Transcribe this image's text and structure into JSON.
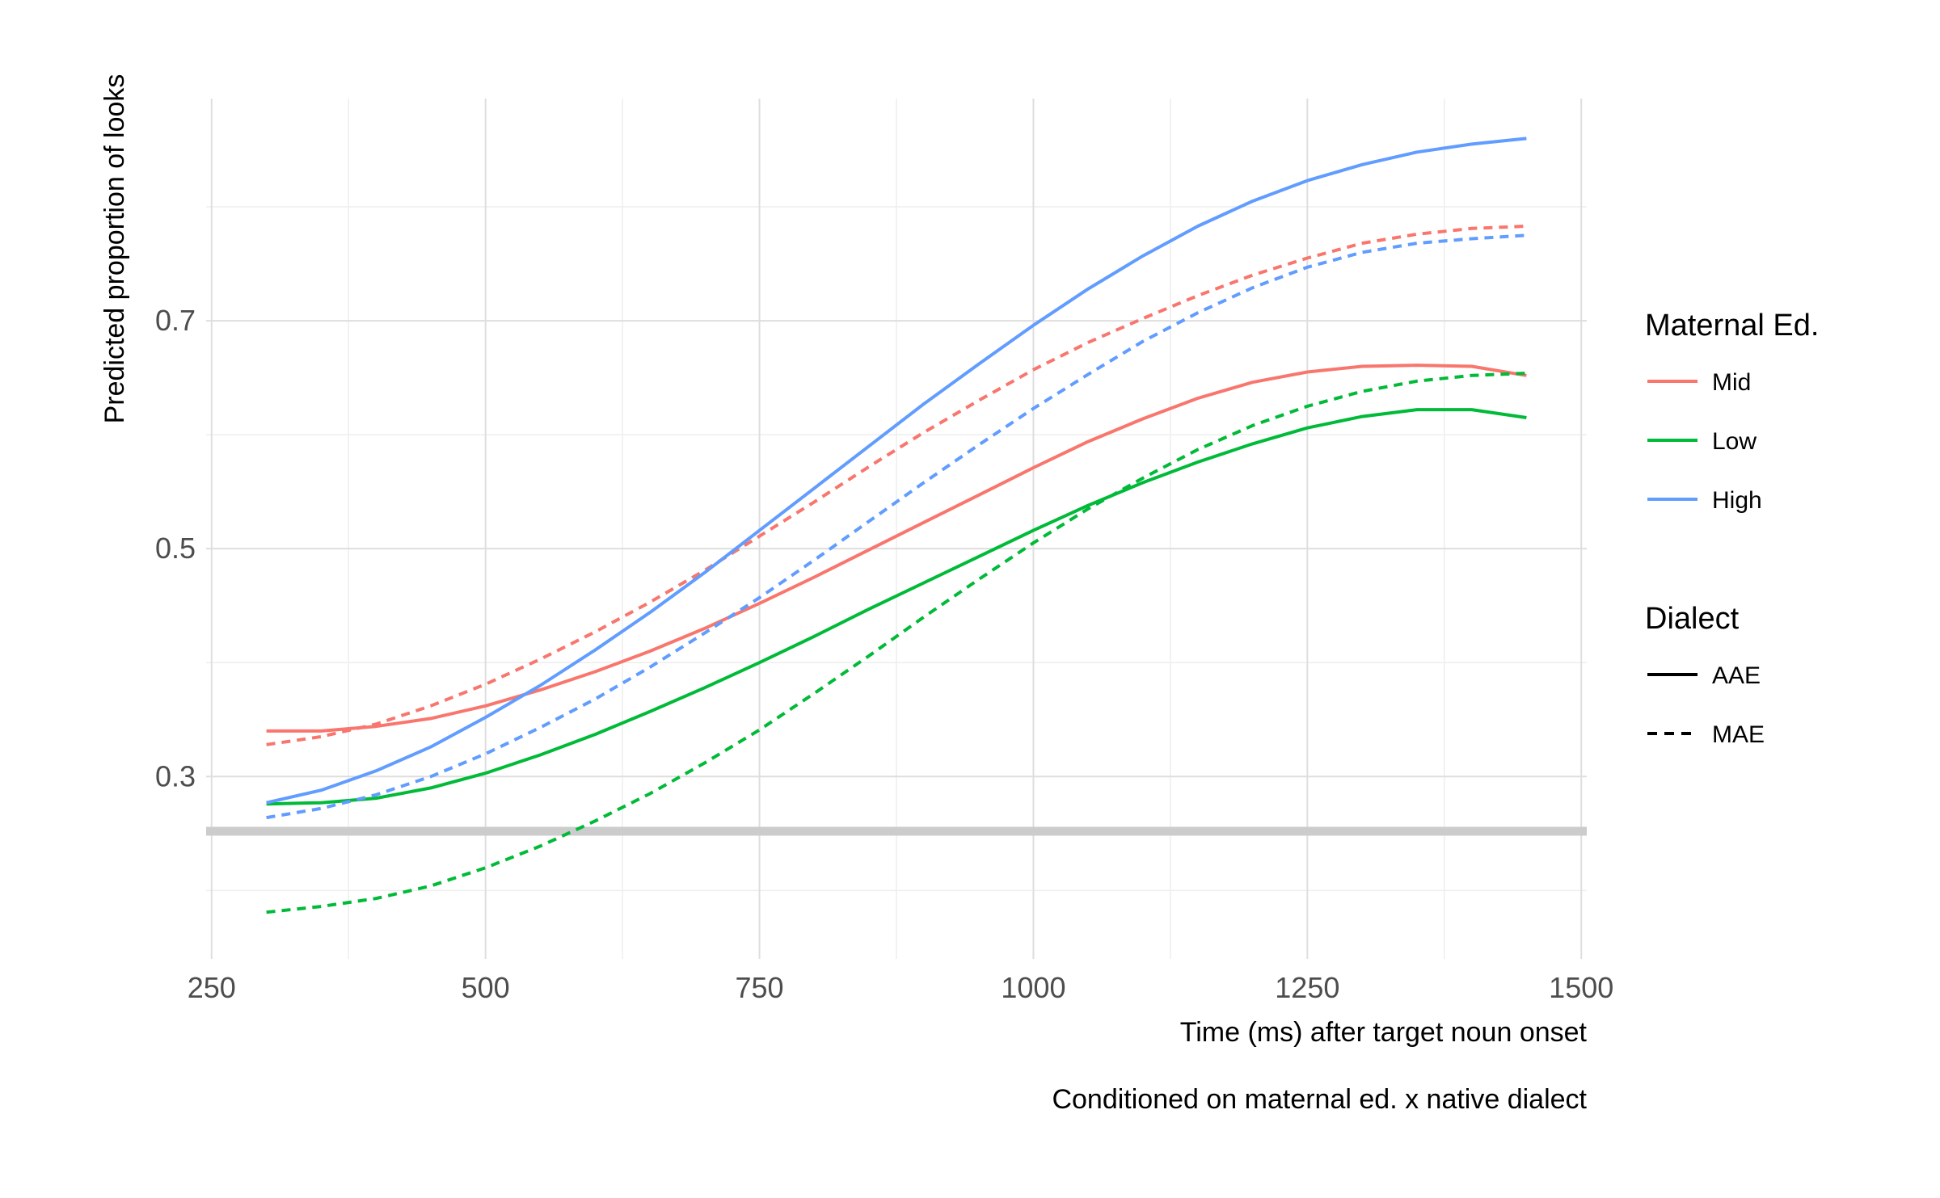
{
  "chart_data": {
    "type": "line",
    "title": "",
    "xlabel": "Time (ms) after target noun onset",
    "ylabel": "Predicted proportion of looks",
    "caption": "Conditioned on maternal ed. x native dialect",
    "xlim": [
      245,
      1505
    ],
    "ylim": [
      0.14,
      0.895
    ],
    "x_ticks": [
      250,
      500,
      750,
      1000,
      1250,
      1500
    ],
    "y_ticks": [
      0.3,
      0.5,
      0.7
    ],
    "grid": true,
    "reference_line": {
      "y": 0.252,
      "color": "#cccccc"
    },
    "legend_position": "right",
    "legends": [
      {
        "title": "Maternal Ed.",
        "entries": [
          {
            "label": "Mid",
            "color": "#F8766D"
          },
          {
            "label": "Low",
            "color": "#00BA38"
          },
          {
            "label": "High",
            "color": "#619CFF"
          }
        ]
      },
      {
        "title": "Dialect",
        "entries": [
          {
            "label": "AAE",
            "dash": "solid"
          },
          {
            "label": "MAE",
            "dash": "dashed"
          }
        ]
      }
    ],
    "x": [
      300,
      350,
      400,
      450,
      500,
      550,
      600,
      650,
      700,
      750,
      800,
      850,
      900,
      950,
      1000,
      1050,
      1100,
      1150,
      1200,
      1250,
      1300,
      1350,
      1400,
      1450
    ],
    "series": [
      {
        "maternal_ed": "Mid",
        "dialect": "AAE",
        "color": "#F8766D",
        "dash": "solid",
        "values": [
          0.34,
          0.34,
          0.344,
          0.351,
          0.362,
          0.376,
          0.392,
          0.41,
          0.43,
          0.452,
          0.475,
          0.499,
          0.523,
          0.547,
          0.571,
          0.594,
          0.614,
          0.632,
          0.646,
          0.655,
          0.66,
          0.661,
          0.66,
          0.652
        ]
      },
      {
        "maternal_ed": "Mid",
        "dialect": "MAE",
        "color": "#F8766D",
        "dash": "dashed",
        "values": [
          0.328,
          0.335,
          0.346,
          0.362,
          0.381,
          0.403,
          0.427,
          0.453,
          0.481,
          0.511,
          0.541,
          0.572,
          0.602,
          0.63,
          0.657,
          0.681,
          0.702,
          0.722,
          0.74,
          0.755,
          0.768,
          0.776,
          0.781,
          0.783
        ]
      },
      {
        "maternal_ed": "Low",
        "dialect": "AAE",
        "color": "#00BA38",
        "dash": "solid",
        "values": [
          0.276,
          0.277,
          0.281,
          0.29,
          0.303,
          0.319,
          0.337,
          0.357,
          0.378,
          0.4,
          0.423,
          0.447,
          0.47,
          0.493,
          0.516,
          0.538,
          0.558,
          0.576,
          0.592,
          0.606,
          0.616,
          0.622,
          0.622,
          0.615
        ]
      },
      {
        "maternal_ed": "Low",
        "dialect": "MAE",
        "color": "#00BA38",
        "dash": "dashed",
        "values": [
          0.181,
          0.186,
          0.193,
          0.204,
          0.22,
          0.239,
          0.261,
          0.285,
          0.312,
          0.341,
          0.373,
          0.406,
          0.44,
          0.473,
          0.505,
          0.535,
          0.562,
          0.587,
          0.608,
          0.625,
          0.638,
          0.647,
          0.652,
          0.654
        ]
      },
      {
        "maternal_ed": "High",
        "dialect": "AAE",
        "color": "#619CFF",
        "dash": "solid",
        "values": [
          0.277,
          0.288,
          0.305,
          0.326,
          0.352,
          0.38,
          0.411,
          0.444,
          0.479,
          0.516,
          0.553,
          0.59,
          0.627,
          0.662,
          0.696,
          0.728,
          0.757,
          0.783,
          0.805,
          0.823,
          0.837,
          0.848,
          0.855,
          0.86
        ]
      },
      {
        "maternal_ed": "High",
        "dialect": "MAE",
        "color": "#619CFF",
        "dash": "dashed",
        "values": [
          0.264,
          0.272,
          0.284,
          0.3,
          0.32,
          0.343,
          0.368,
          0.396,
          0.426,
          0.457,
          0.49,
          0.524,
          0.558,
          0.591,
          0.623,
          0.653,
          0.682,
          0.707,
          0.729,
          0.747,
          0.76,
          0.768,
          0.772,
          0.775
        ]
      }
    ]
  }
}
